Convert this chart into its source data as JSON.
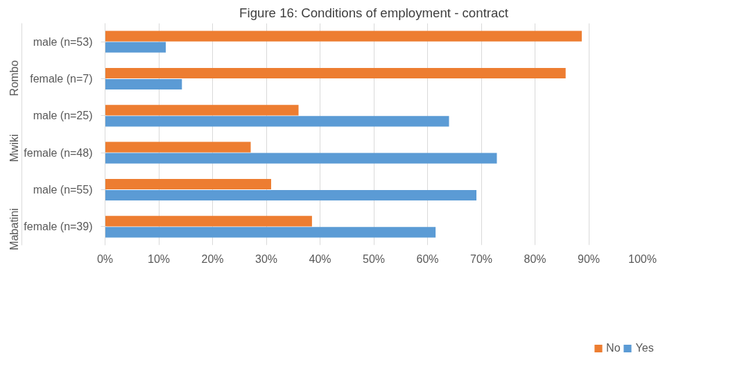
{
  "chart_data": {
    "type": "bar",
    "orientation": "horizontal",
    "title": "Figure 16: Conditions of employment - contract",
    "categories": [
      "male (n=53)",
      "female (n=7)",
      "male (n=25)",
      "female (n=48)",
      "male (n=55)",
      "female (n=39)"
    ],
    "series": [
      {
        "name": "No",
        "color": "#ed7d31",
        "values": [
          88.7,
          85.7,
          36.0,
          27.1,
          30.9,
          38.5
        ]
      },
      {
        "name": "Yes",
        "color": "#5b9bd5",
        "values": [
          11.3,
          14.3,
          64.0,
          72.9,
          69.1,
          61.5
        ]
      }
    ],
    "annotations": [
      "Rombo",
      "Mwiki",
      "Mabatini"
    ],
    "xlim": [
      0,
      100
    ],
    "xticks": [
      {
        "value": 0,
        "label": "0%"
      },
      {
        "value": 10,
        "label": "10%"
      },
      {
        "value": 20,
        "label": "20%"
      },
      {
        "value": 30,
        "label": "30%"
      },
      {
        "value": 40,
        "label": "40%"
      },
      {
        "value": 50,
        "label": "50%"
      },
      {
        "value": 60,
        "label": "60%"
      },
      {
        "value": 70,
        "label": "70%"
      },
      {
        "value": 80,
        "label": "80%"
      },
      {
        "value": 90,
        "label": "90%"
      },
      {
        "value": 100,
        "label": "100%"
      }
    ],
    "grid": "x",
    "legend": "bottom"
  }
}
